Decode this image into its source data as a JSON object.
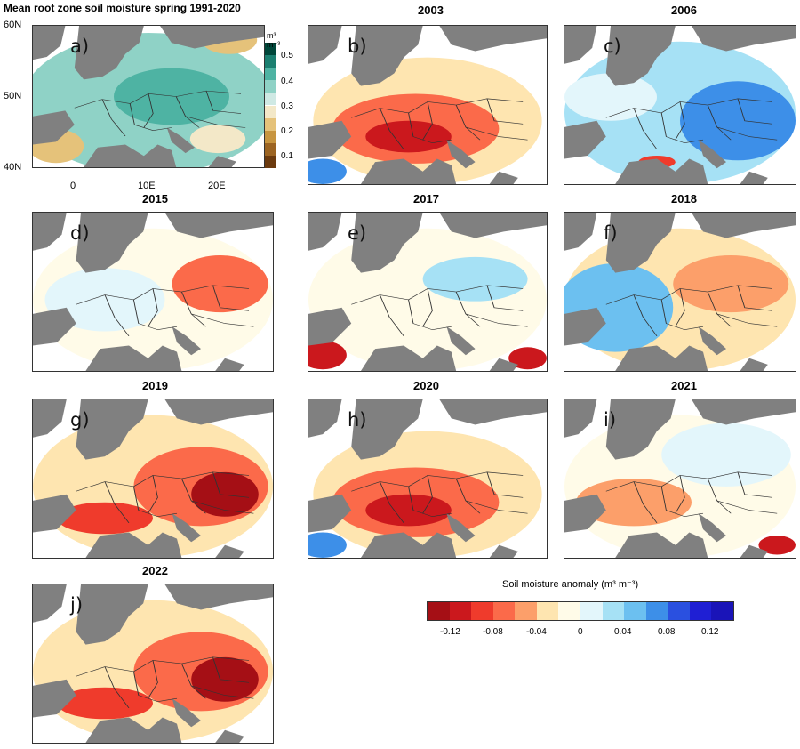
{
  "panel_a": {
    "title": "Mean root zone soil moisture spring 1991-2020",
    "label": "a)",
    "y_ticks": [
      "60N",
      "50N",
      "40N"
    ],
    "x_ticks": [
      "0",
      "10E",
      "20E"
    ],
    "colorbar": {
      "unit_html": "m³ m⁻³",
      "ticks": [
        "0.5",
        "0.4",
        "0.3",
        "0.2",
        "0.1"
      ],
      "colors": [
        "#00473a",
        "#1b7f70",
        "#4eb3a3",
        "#8fd2c6",
        "#cfe9e4",
        "#f3e8c8",
        "#e5c27a",
        "#c79540",
        "#9c6422",
        "#6b3a0e"
      ]
    }
  },
  "panels": [
    {
      "year": "2003",
      "label": "b)",
      "pattern": "dry_central"
    },
    {
      "year": "2006",
      "label": "c)",
      "pattern": "wet_east"
    },
    {
      "year": "2015",
      "label": "d)",
      "pattern": "mixed_dry_east"
    },
    {
      "year": "2017",
      "label": "e)",
      "pattern": "mixed_wet_center"
    },
    {
      "year": "2018",
      "label": "f)",
      "pattern": "wet_west_dry_east"
    },
    {
      "year": "2019",
      "label": "g)",
      "pattern": "dry_east_strong"
    },
    {
      "year": "2020",
      "label": "h)",
      "pattern": "dry_central"
    },
    {
      "year": "2021",
      "label": "i)",
      "pattern": "wet_north"
    },
    {
      "year": "2022",
      "label": "j)",
      "pattern": "dry_east_strong"
    }
  ],
  "anomaly_colorbar": {
    "title": "Soil moisture anomaly (m³ m⁻³)",
    "ticks": [
      "-0.12",
      "-0.08",
      "-0.04",
      "0",
      "0.04",
      "0.08",
      "0.12"
    ],
    "colors": [
      "#a50f15",
      "#cb181d",
      "#ef3b2c",
      "#fb6a4a",
      "#fc9f6a",
      "#fee5b0",
      "#fffbe8",
      "#e3f6fb",
      "#a6e1f5",
      "#6cc0f0",
      "#3d8fe8",
      "#2a50e0",
      "#1f1fd4",
      "#1a14b8"
    ]
  }
}
